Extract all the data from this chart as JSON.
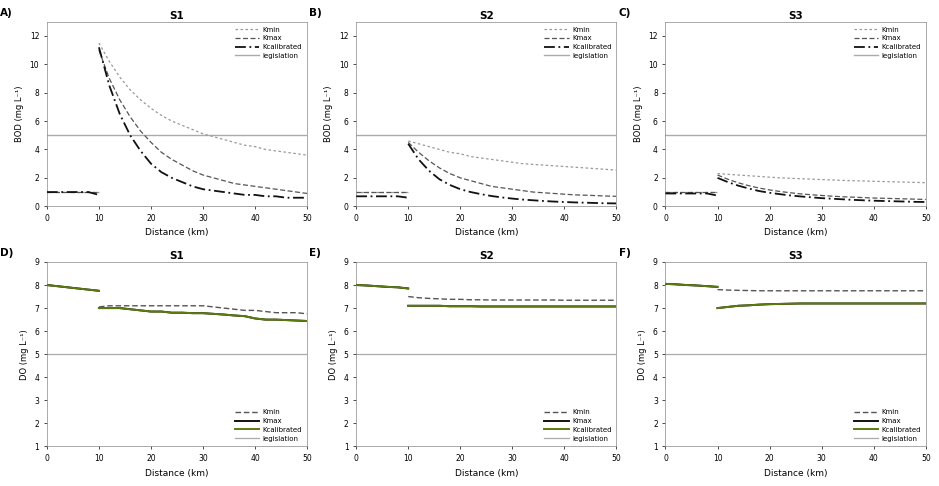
{
  "fig_width": 9.39,
  "fig_height": 4.86,
  "dpi": 100,
  "x_pre": [
    0,
    2,
    4,
    6,
    8,
    9.99
  ],
  "x_post": [
    10,
    12,
    14,
    16,
    18,
    20,
    22,
    24,
    26,
    28,
    30,
    32,
    34,
    36,
    38,
    40,
    42,
    44,
    46,
    48,
    50
  ],
  "bod_legislation": 5.0,
  "do_legislation": 5.0,
  "panels": [
    {
      "label": "A)",
      "subtitle": "S1",
      "type": "BOD",
      "ylim": [
        0,
        13
      ],
      "yticks": [
        0,
        2,
        4,
        6,
        8,
        10,
        12
      ],
      "ylabel": "BOD (mg L⁻¹)",
      "legend_loc": "upper right",
      "kmin_pre": [
        1.0,
        1.0,
        1.0,
        1.0,
        1.0,
        1.0
      ],
      "kmin_post": [
        11.5,
        10.2,
        9.1,
        8.2,
        7.5,
        6.9,
        6.4,
        6.0,
        5.7,
        5.4,
        5.1,
        4.9,
        4.7,
        4.5,
        4.3,
        4.2,
        4.0,
        3.9,
        3.8,
        3.7,
        3.6
      ],
      "kmax_pre": [
        1.0,
        1.0,
        1.0,
        1.0,
        1.0,
        1.0
      ],
      "kmax_post": [
        11.0,
        9.0,
        7.5,
        6.3,
        5.3,
        4.5,
        3.8,
        3.3,
        2.9,
        2.5,
        2.2,
        2.0,
        1.8,
        1.6,
        1.5,
        1.4,
        1.3,
        1.2,
        1.1,
        1.0,
        0.9
      ],
      "kcal_pre": [
        1.0,
        1.0,
        1.0,
        1.0,
        1.0,
        0.8
      ],
      "kcal_post": [
        11.2,
        8.5,
        6.5,
        5.0,
        3.9,
        3.0,
        2.4,
        2.0,
        1.7,
        1.4,
        1.2,
        1.1,
        1.0,
        0.9,
        0.8,
        0.8,
        0.7,
        0.7,
        0.6,
        0.6,
        0.6
      ]
    },
    {
      "label": "B)",
      "subtitle": "S2",
      "type": "BOD",
      "ylim": [
        0,
        13
      ],
      "yticks": [
        0,
        2,
        4,
        6,
        8,
        10,
        12
      ],
      "ylabel": "BOD (mg L⁻¹)",
      "legend_loc": "upper right",
      "kmin_pre": [
        1.0,
        1.0,
        1.0,
        1.0,
        1.0,
        1.0
      ],
      "kmin_post": [
        4.6,
        4.4,
        4.2,
        4.0,
        3.8,
        3.7,
        3.5,
        3.4,
        3.3,
        3.2,
        3.1,
        3.0,
        2.95,
        2.9,
        2.85,
        2.8,
        2.75,
        2.7,
        2.65,
        2.6,
        2.55
      ],
      "kmax_pre": [
        1.0,
        1.0,
        1.0,
        1.0,
        1.0,
        1.0
      ],
      "kmax_post": [
        4.5,
        3.8,
        3.2,
        2.7,
        2.3,
        2.0,
        1.8,
        1.6,
        1.4,
        1.3,
        1.2,
        1.1,
        1.0,
        0.95,
        0.9,
        0.85,
        0.8,
        0.78,
        0.75,
        0.72,
        0.7
      ],
      "kcal_pre": [
        0.7,
        0.7,
        0.7,
        0.7,
        0.7,
        0.6
      ],
      "kcal_post": [
        4.4,
        3.3,
        2.5,
        1.9,
        1.5,
        1.2,
        1.0,
        0.85,
        0.72,
        0.62,
        0.54,
        0.47,
        0.42,
        0.37,
        0.33,
        0.3,
        0.27,
        0.25,
        0.23,
        0.21,
        0.2
      ]
    },
    {
      "label": "C)",
      "subtitle": "S3",
      "type": "BOD",
      "ylim": [
        0,
        13
      ],
      "yticks": [
        0,
        2,
        4,
        6,
        8,
        10,
        12
      ],
      "ylabel": "BOD (mg L⁻¹)",
      "legend_loc": "upper right",
      "kmin_pre": [
        1.0,
        1.0,
        1.0,
        1.0,
        1.0,
        1.0
      ],
      "kmin_post": [
        2.3,
        2.25,
        2.2,
        2.15,
        2.1,
        2.05,
        2.0,
        1.97,
        1.94,
        1.91,
        1.88,
        1.85,
        1.82,
        1.8,
        1.78,
        1.76,
        1.74,
        1.72,
        1.7,
        1.68,
        1.66
      ],
      "kmax_pre": [
        1.0,
        1.0,
        1.0,
        1.0,
        1.0,
        1.0
      ],
      "kmax_post": [
        2.2,
        1.9,
        1.65,
        1.45,
        1.28,
        1.15,
        1.04,
        0.95,
        0.87,
        0.81,
        0.76,
        0.71,
        0.67,
        0.64,
        0.61,
        0.58,
        0.56,
        0.54,
        0.52,
        0.5,
        0.48
      ],
      "kcal_pre": [
        0.9,
        0.9,
        0.9,
        0.9,
        0.9,
        0.75
      ],
      "kcal_post": [
        2.0,
        1.7,
        1.45,
        1.25,
        1.07,
        0.95,
        0.85,
        0.76,
        0.69,
        0.63,
        0.57,
        0.53,
        0.49,
        0.45,
        0.42,
        0.39,
        0.37,
        0.35,
        0.33,
        0.31,
        0.3
      ]
    },
    {
      "label": "D)",
      "subtitle": "S1",
      "type": "DO",
      "ylim": [
        1,
        9
      ],
      "yticks": [
        1,
        2,
        3,
        4,
        5,
        6,
        7,
        8,
        9
      ],
      "ylabel": "DO (mg L⁻¹)",
      "legend_loc": "lower right",
      "kmin_pre": [
        8.0,
        7.95,
        7.9,
        7.85,
        7.8,
        7.75
      ],
      "kmin_post": [
        7.05,
        7.1,
        7.1,
        7.1,
        7.1,
        7.1,
        7.1,
        7.1,
        7.1,
        7.1,
        7.1,
        7.05,
        7.0,
        6.95,
        6.9,
        6.9,
        6.85,
        6.8,
        6.8,
        6.8,
        6.75
      ],
      "kmax_pre": [
        8.0,
        7.95,
        7.9,
        7.85,
        7.8,
        7.75
      ],
      "kmax_post": [
        7.0,
        7.0,
        7.0,
        6.95,
        6.9,
        6.85,
        6.85,
        6.8,
        6.8,
        6.78,
        6.78,
        6.75,
        6.72,
        6.68,
        6.65,
        6.55,
        6.5,
        6.5,
        6.48,
        6.46,
        6.44
      ],
      "kcal_pre": [
        8.0,
        7.95,
        7.9,
        7.85,
        7.8,
        7.75
      ],
      "kcal_post": [
        7.0,
        7.0,
        7.0,
        6.95,
        6.9,
        6.85,
        6.85,
        6.8,
        6.8,
        6.78,
        6.78,
        6.75,
        6.72,
        6.68,
        6.65,
        6.55,
        6.5,
        6.5,
        6.48,
        6.46,
        6.44
      ]
    },
    {
      "label": "E)",
      "subtitle": "S2",
      "type": "DO",
      "ylim": [
        1,
        9
      ],
      "yticks": [
        1,
        2,
        3,
        4,
        5,
        6,
        7,
        8,
        9
      ],
      "ylabel": "DO (mg L⁻¹)",
      "legend_loc": "lower right",
      "kmin_pre": [
        8.0,
        7.98,
        7.95,
        7.92,
        7.9,
        7.85
      ],
      "kmin_post": [
        7.5,
        7.45,
        7.42,
        7.4,
        7.38,
        7.38,
        7.36,
        7.36,
        7.35,
        7.35,
        7.35,
        7.35,
        7.35,
        7.35,
        7.35,
        7.34,
        7.34,
        7.34,
        7.34,
        7.34,
        7.34
      ],
      "kmax_pre": [
        8.0,
        7.98,
        7.95,
        7.92,
        7.9,
        7.85
      ],
      "kmax_post": [
        7.1,
        7.1,
        7.1,
        7.1,
        7.08,
        7.08,
        7.08,
        7.07,
        7.07,
        7.07,
        7.07,
        7.07,
        7.07,
        7.07,
        7.07,
        7.07,
        7.07,
        7.07,
        7.07,
        7.07,
        7.07
      ],
      "kcal_pre": [
        8.0,
        7.98,
        7.95,
        7.92,
        7.9,
        7.85
      ],
      "kcal_post": [
        7.1,
        7.1,
        7.1,
        7.1,
        7.08,
        7.08,
        7.08,
        7.07,
        7.07,
        7.07,
        7.07,
        7.07,
        7.07,
        7.07,
        7.07,
        7.07,
        7.07,
        7.07,
        7.07,
        7.07,
        7.07
      ]
    },
    {
      "label": "F)",
      "subtitle": "S3",
      "type": "DO",
      "ylim": [
        1,
        9
      ],
      "yticks": [
        1,
        2,
        3,
        4,
        5,
        6,
        7,
        8,
        9
      ],
      "ylabel": "DO (mg L⁻¹)",
      "legend_loc": "lower right",
      "kmin_pre": [
        8.05,
        8.03,
        8.0,
        7.98,
        7.95,
        7.92
      ],
      "kmin_post": [
        7.8,
        7.78,
        7.77,
        7.76,
        7.75,
        7.75,
        7.75,
        7.75,
        7.75,
        7.75,
        7.75,
        7.75,
        7.75,
        7.75,
        7.75,
        7.75,
        7.75,
        7.75,
        7.75,
        7.75,
        7.75
      ],
      "kmax_pre": [
        8.05,
        8.03,
        8.0,
        7.98,
        7.95,
        7.92
      ],
      "kmax_post": [
        7.0,
        7.05,
        7.1,
        7.12,
        7.15,
        7.17,
        7.18,
        7.19,
        7.2,
        7.2,
        7.2,
        7.2,
        7.2,
        7.2,
        7.2,
        7.2,
        7.2,
        7.2,
        7.2,
        7.2,
        7.2
      ],
      "kcal_pre": [
        8.05,
        8.03,
        8.0,
        7.98,
        7.95,
        7.92
      ],
      "kcal_post": [
        7.0,
        7.05,
        7.1,
        7.12,
        7.15,
        7.17,
        7.18,
        7.19,
        7.2,
        7.2,
        7.2,
        7.2,
        7.2,
        7.2,
        7.2,
        7.2,
        7.2,
        7.2,
        7.2,
        7.2,
        7.2
      ]
    }
  ]
}
